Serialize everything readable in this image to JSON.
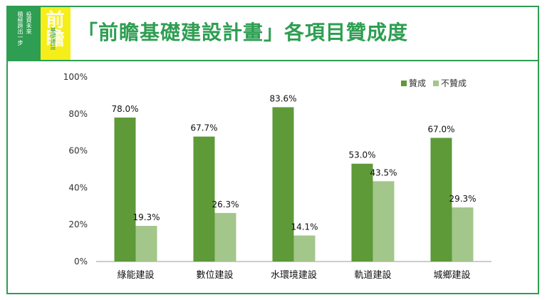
{
  "header": {
    "title": "「前瞻基礎建設計畫」各項目贊成度",
    "logo": {
      "line1": "投資未來",
      "line2": "積極跨出一步",
      "mark": "前瞻",
      "line3": "基礎建設"
    }
  },
  "colors": {
    "frame": "#2e9e52",
    "favor": "#5e9a38",
    "oppose": "#a3c68a"
  },
  "chart_data": {
    "type": "bar",
    "categories": [
      "綠能建設",
      "數位建設",
      "水環境建設",
      "軌道建設",
      "城鄉建設"
    ],
    "series": [
      {
        "name": "贊成",
        "values": [
          78.0,
          67.7,
          83.6,
          53.0,
          67.0
        ],
        "labels": [
          "78.0%",
          "67.7%",
          "83.6%",
          "53.0%",
          "67.0%"
        ]
      },
      {
        "name": "不贊成",
        "values": [
          19.3,
          26.3,
          14.1,
          43.5,
          29.3
        ],
        "labels": [
          "19.3%",
          "26.3%",
          "14.1%",
          "43.5%",
          "29.3%"
        ]
      }
    ],
    "ylim": [
      0,
      100
    ],
    "yticks": [
      "0%",
      "20%",
      "40%",
      "60%",
      "80%",
      "100%"
    ],
    "grid": false,
    "legend": "top-right"
  }
}
